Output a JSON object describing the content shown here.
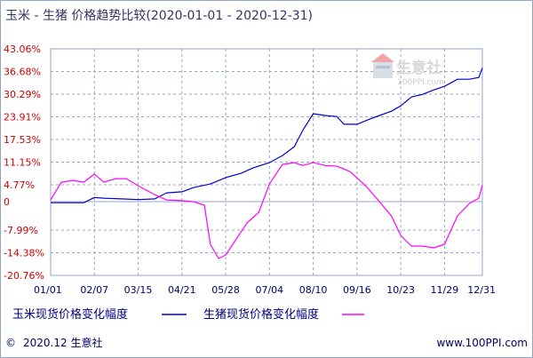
{
  "chart_data": {
    "type": "line",
    "title": "玉米 - 生猪  价格趋势比较(2020-01-01 - 2020-12-31)",
    "y_ticks": [
      "43.06%",
      "36.68%",
      "30.29%",
      "23.91%",
      "17.53%",
      "11.15%",
      "4.77%",
      "0",
      "-7.99%",
      "-14.38%",
      "-20.76%"
    ],
    "y_tick_values": [
      43.06,
      36.68,
      30.29,
      23.91,
      17.53,
      11.15,
      4.77,
      0,
      -7.99,
      -14.38,
      -20.76
    ],
    "ylim": [
      -20.76,
      43.06
    ],
    "x_ticks": [
      "01/01",
      "02/07",
      "03/15",
      "04/21",
      "05/28",
      "07/04",
      "08/10",
      "09/16",
      "10/23",
      "11/29",
      "12/31"
    ],
    "grid": true,
    "legend_position": "bottom",
    "series": [
      {
        "name": "玉米现货价格变化幅度",
        "color": "#0000cc",
        "x": [
          "01/01",
          "01/15",
          "01/29",
          "02/07",
          "02/15",
          "03/01",
          "03/15",
          "03/29",
          "04/08",
          "04/21",
          "05/01",
          "05/15",
          "05/28",
          "06/10",
          "06/20",
          "07/04",
          "07/15",
          "07/25",
          "08/01",
          "08/10",
          "08/20",
          "08/30",
          "09/05",
          "09/16",
          "09/26",
          "10/05",
          "10/15",
          "10/23",
          "11/01",
          "11/10",
          "11/20",
          "11/29",
          "12/10",
          "12/20",
          "12/28",
          "12/31"
        ],
        "values": [
          -0.3,
          -0.3,
          -0.3,
          1.2,
          1.0,
          0.8,
          0.6,
          0.8,
          2.5,
          2.8,
          4.0,
          5.0,
          6.8,
          8.0,
          9.5,
          11.0,
          13.0,
          15.5,
          20.0,
          24.8,
          24.3,
          24.0,
          21.8,
          21.8,
          23.2,
          24.3,
          25.5,
          27.0,
          29.5,
          30.2,
          31.5,
          32.5,
          34.5,
          34.5,
          35.0,
          37.7
        ]
      },
      {
        "name": "生猪现货价格变化幅度",
        "color": "#ff00ff",
        "x": [
          "01/01",
          "01/10",
          "01/20",
          "01/29",
          "02/07",
          "02/15",
          "02/25",
          "03/05",
          "03/15",
          "03/29",
          "04/08",
          "04/21",
          "05/01",
          "05/10",
          "05/15",
          "05/22",
          "05/28",
          "06/05",
          "06/15",
          "06/25",
          "07/04",
          "07/15",
          "07/25",
          "08/01",
          "08/10",
          "08/20",
          "08/30",
          "09/10",
          "09/20",
          "09/26",
          "10/05",
          "10/15",
          "10/23",
          "11/01",
          "11/10",
          "11/20",
          "11/29",
          "12/10",
          "12/20",
          "12/28",
          "12/31"
        ],
        "values": [
          0.5,
          5.5,
          6.0,
          5.5,
          7.8,
          5.5,
          6.5,
          6.5,
          4.5,
          2.0,
          0.5,
          0.3,
          0.0,
          -1.0,
          -12.0,
          -16.0,
          -15.0,
          -11.0,
          -6.0,
          -3.0,
          5.0,
          10.5,
          11.0,
          10.2,
          11.0,
          10.2,
          10.0,
          8.5,
          5.5,
          3.5,
          0.0,
          -4.0,
          -9.5,
          -12.5,
          -12.5,
          -13.0,
          -12.0,
          -4.0,
          -0.5,
          1.0,
          4.7
        ]
      }
    ]
  },
  "legend": {
    "corn_label": "玉米现货价格变化幅度",
    "pig_label": "生猪现货价格变化幅度"
  },
  "logo": {
    "name": "生意社",
    "url": "100PPI.com"
  },
  "footer": {
    "left": "2020.12 生意社",
    "right": "www.100PPI.com"
  }
}
